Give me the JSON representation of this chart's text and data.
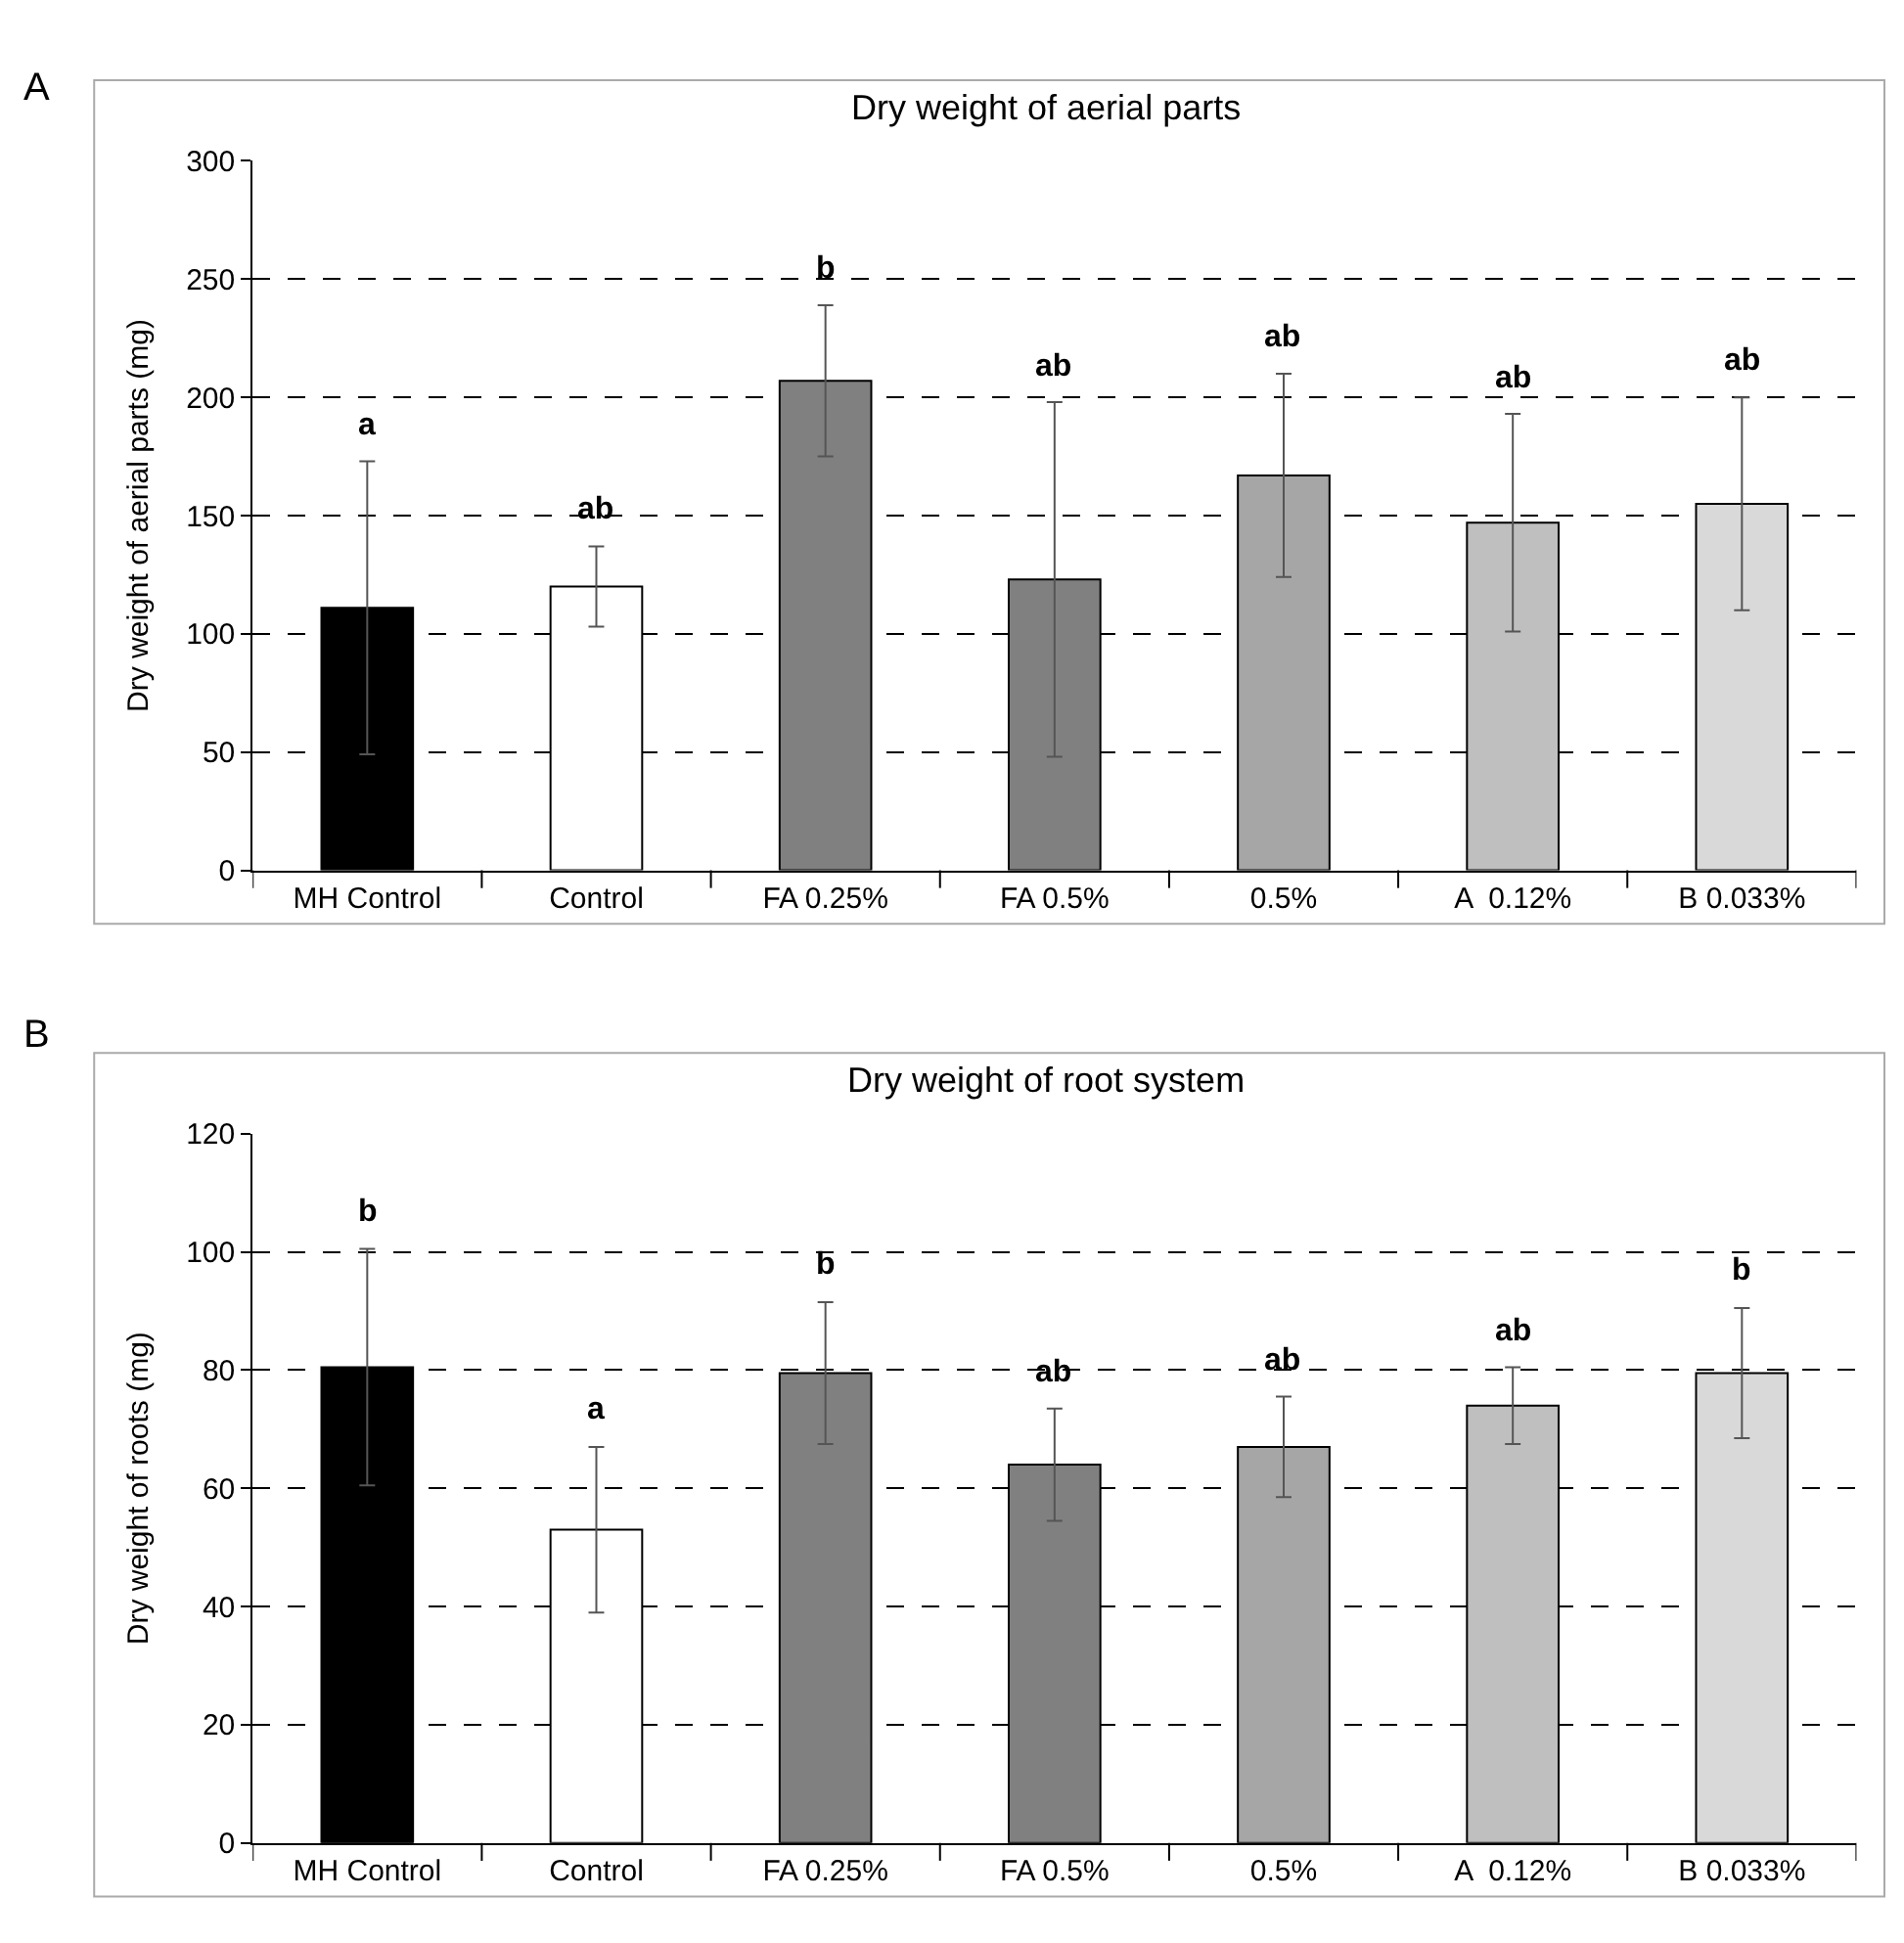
{
  "chart_data": [
    {
      "type": "bar",
      "title": "Dry weight of aerial parts",
      "ylabel": "Dry weight of aerial parts (mg)",
      "categories": [
        "MH Control",
        "Control",
        "FA 0.25%",
        "FA 0.5%",
        "0.5%",
        "A  0.12%",
        "B 0.033%"
      ],
      "values": [
        111,
        120,
        207,
        123,
        167,
        147,
        155
      ],
      "errors": [
        62,
        17,
        32,
        75,
        43,
        46,
        45
      ],
      "colors": [
        "#000000",
        "#ffffff",
        "#808080",
        "#808080",
        "#a6a6a6",
        "#bfbfbf",
        "#d9d9d9"
      ],
      "ylim": [
        0,
        300
      ],
      "yticks": [
        0,
        50,
        100,
        150,
        200,
        250,
        300
      ],
      "grid": "y",
      "annotations": [
        "A",
        "a",
        "ab",
        "b",
        "ab",
        "ab",
        "ab",
        "ab"
      ]
    },
    {
      "type": "bar",
      "title": "Dry weight of root system",
      "ylabel": "Dry weight of roots (mg)",
      "categories": [
        "MH Control",
        "Control",
        "FA 0.25%",
        "FA 0.5%",
        "0.5%",
        "A  0.12%",
        "B 0.033%"
      ],
      "values": [
        80.5,
        53,
        79.5,
        64,
        67,
        74,
        79.5
      ],
      "errors": [
        20,
        14,
        12,
        9.5,
        8.5,
        6.5,
        11
      ],
      "colors": [
        "#000000",
        "#ffffff",
        "#808080",
        "#808080",
        "#a6a6a6",
        "#bfbfbf",
        "#d9d9d9"
      ],
      "ylim": [
        0,
        120
      ],
      "yticks": [
        0,
        20,
        40,
        60,
        80,
        100,
        120
      ],
      "grid": "y",
      "annotations": [
        "B",
        "b",
        "a",
        "b",
        "ab",
        "ab",
        "ab",
        "b"
      ]
    }
  ]
}
